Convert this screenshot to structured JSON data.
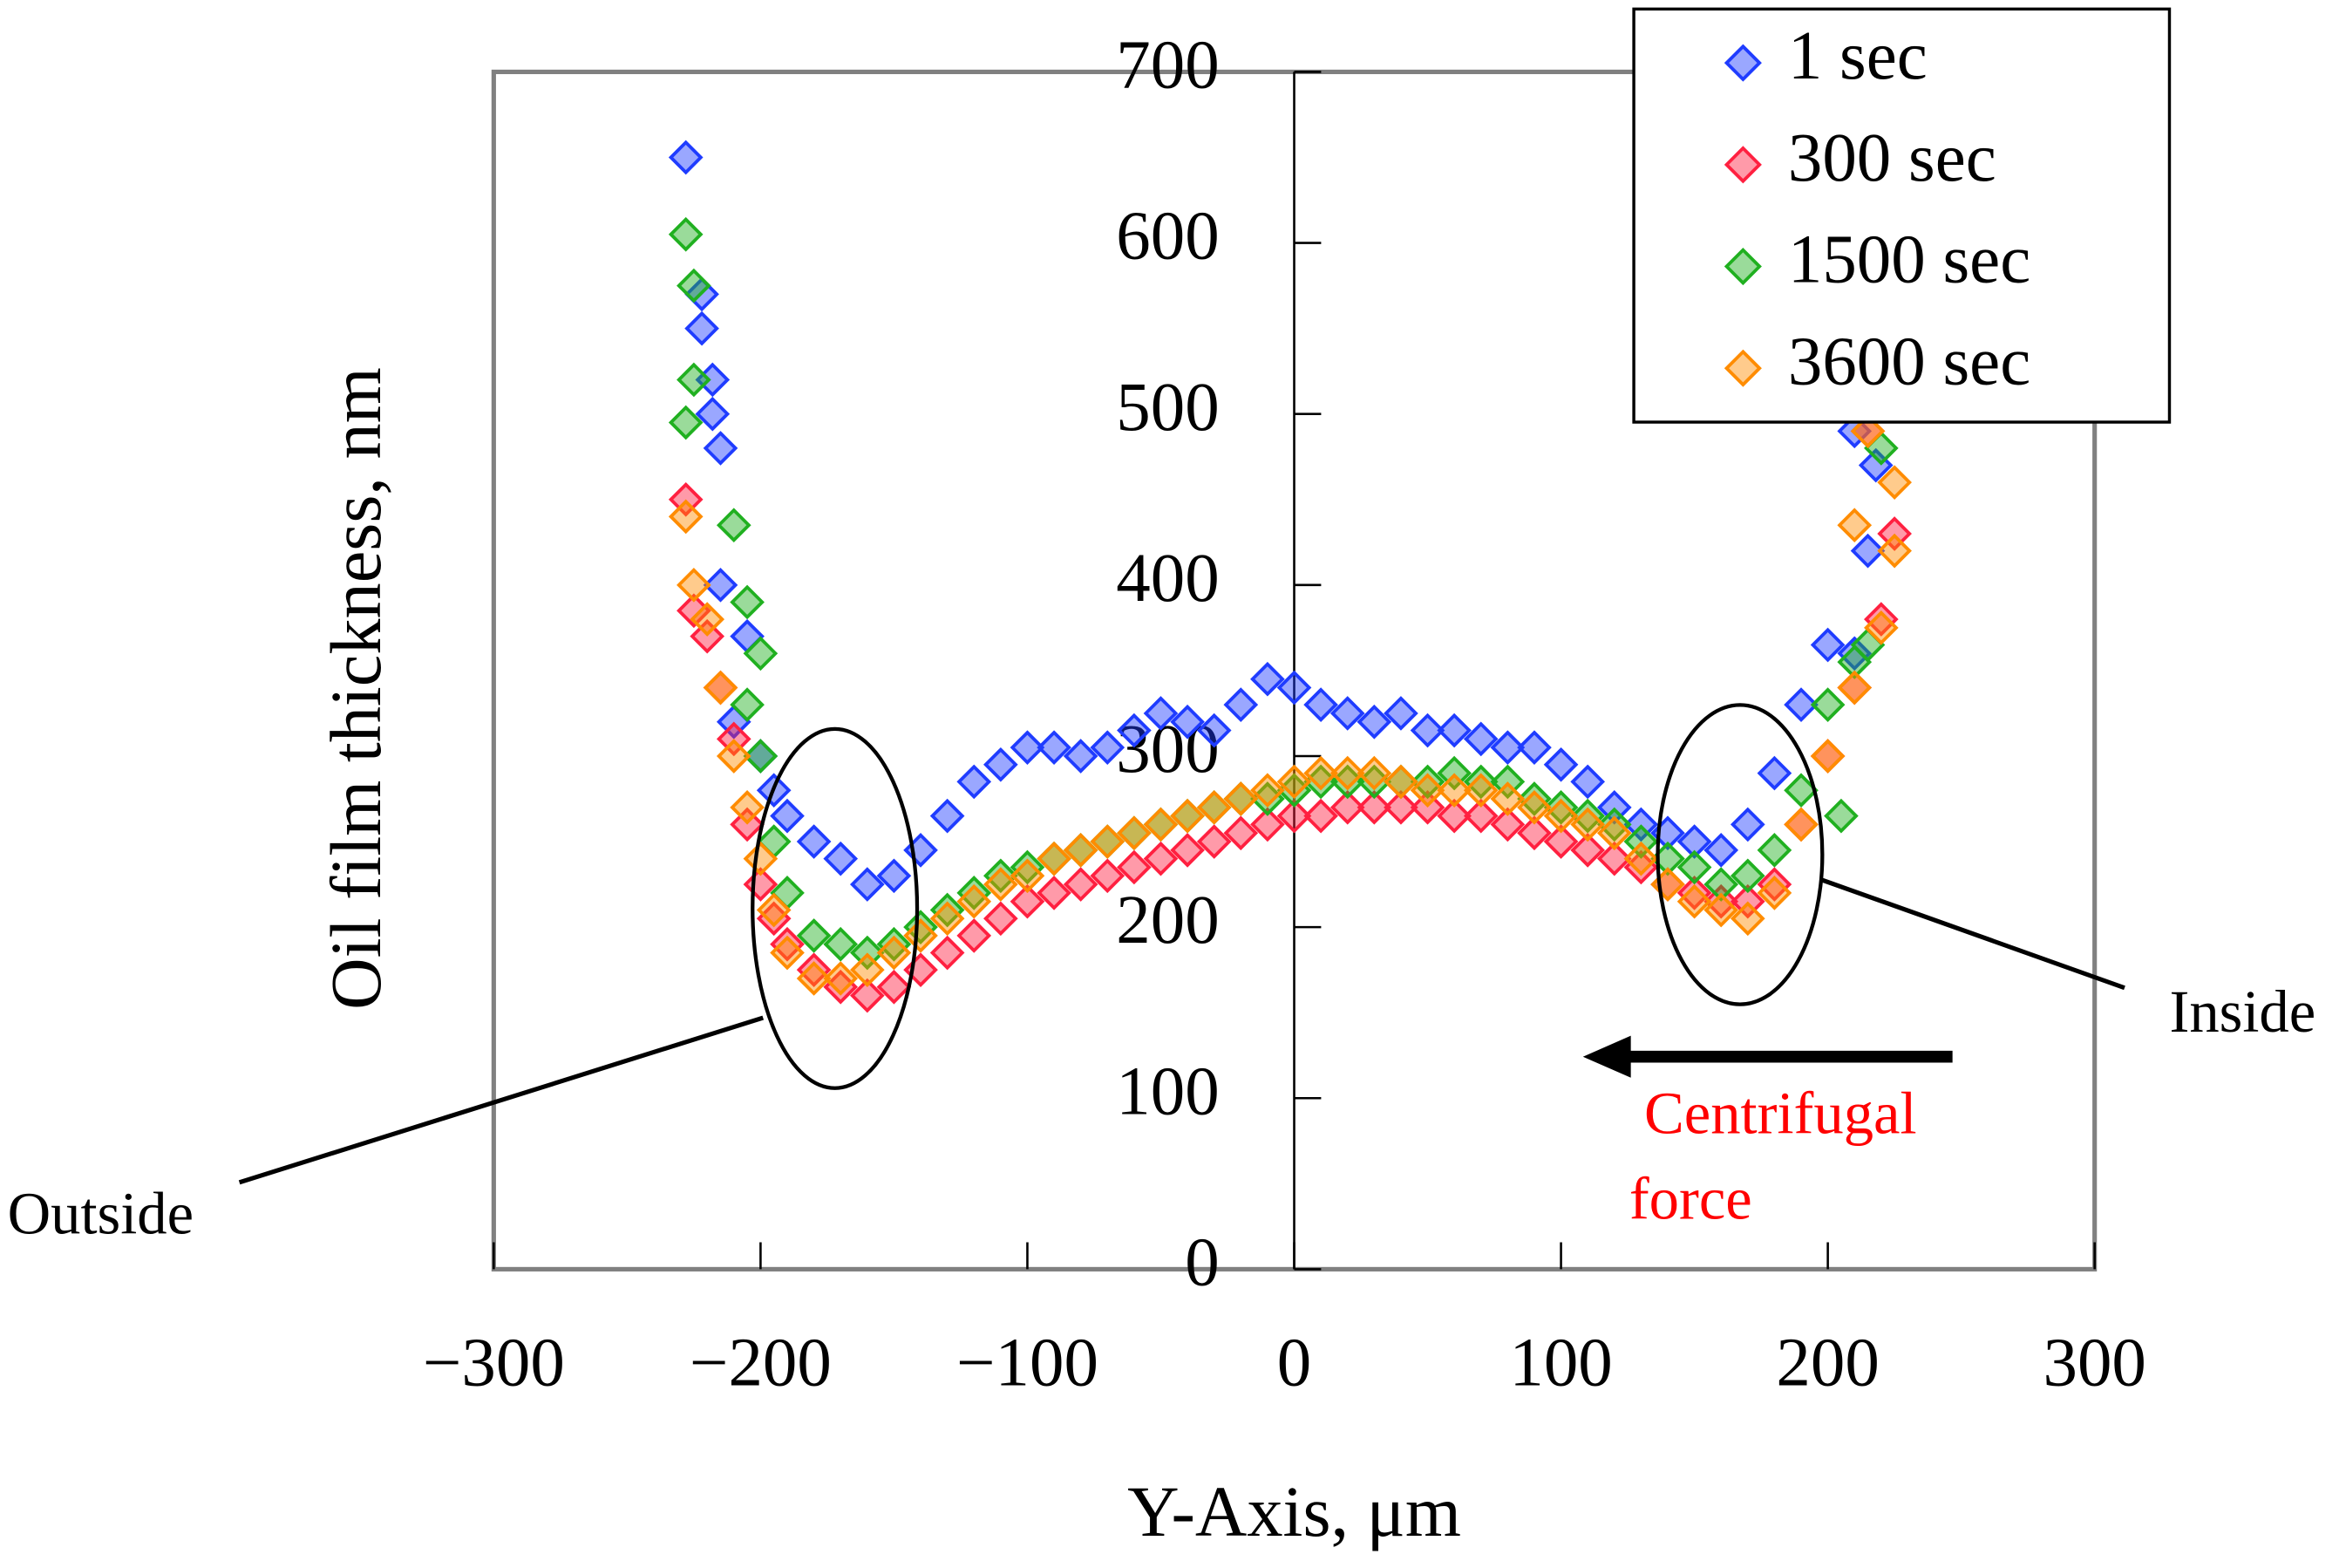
{
  "chart_data": {
    "type": "scatter",
    "xlabel": "Y-Axis, μm",
    "ylabel": "Oil film thickness, nm",
    "xlim": [
      -300,
      300
    ],
    "ylim": [
      0,
      700
    ],
    "xticks": [
      {
        "value": -300,
        "label": "−300"
      },
      {
        "value": -200,
        "label": "−200"
      },
      {
        "value": -100,
        "label": "−100"
      },
      0,
      100,
      200,
      300
    ],
    "yticks": [
      0,
      100,
      200,
      300,
      400,
      500,
      600,
      700
    ],
    "legend": "upper right",
    "annotations": [
      "Outside",
      "Inside",
      "Centrifugal",
      "force"
    ],
    "series": [
      {
        "name": "1 sec",
        "color": "#1f3cff",
        "x": [
          -228,
          -222,
          -222,
          -218,
          -218,
          -215,
          -215,
          -205,
          -210,
          -200,
          -195,
          -190,
          -180,
          -170,
          -160,
          -150,
          -140,
          -130,
          -120,
          -110,
          -100,
          -90,
          -80,
          -70,
          -60,
          -50,
          -40,
          -30,
          -20,
          -10,
          0,
          10,
          20,
          30,
          40,
          50,
          60,
          70,
          80,
          90,
          100,
          110,
          120,
          130,
          140,
          150,
          160,
          170,
          180,
          190,
          200,
          210,
          215,
          218,
          210
        ],
        "y": [
          650,
          570,
          550,
          520,
          500,
          480,
          400,
          370,
          320,
          300,
          280,
          265,
          250,
          240,
          225,
          230,
          245,
          265,
          285,
          295,
          305,
          305,
          300,
          305,
          315,
          325,
          320,
          315,
          330,
          345,
          340,
          330,
          325,
          320,
          325,
          315,
          315,
          310,
          305,
          305,
          295,
          285,
          270,
          260,
          255,
          250,
          245,
          260,
          290,
          330,
          365,
          360,
          420,
          470,
          490
        ]
      },
      {
        "name": "300 sec",
        "color": "#ff2040",
        "x": [
          -228,
          -225,
          -220,
          -215,
          -210,
          -205,
          -200,
          -195,
          -190,
          -180,
          -170,
          -160,
          -150,
          -140,
          -130,
          -120,
          -110,
          -100,
          -90,
          -80,
          -70,
          -60,
          -50,
          -40,
          -30,
          -20,
          -10,
          0,
          10,
          20,
          30,
          40,
          50,
          60,
          70,
          80,
          90,
          100,
          110,
          120,
          130,
          140,
          150,
          160,
          170,
          180,
          190,
          200,
          210,
          220,
          225,
          215
        ],
        "y": [
          450,
          385,
          370,
          340,
          310,
          260,
          225,
          205,
          190,
          175,
          165,
          160,
          165,
          175,
          185,
          195,
          205,
          215,
          220,
          225,
          230,
          235,
          240,
          245,
          250,
          255,
          260,
          265,
          265,
          270,
          270,
          270,
          270,
          265,
          265,
          260,
          255,
          250,
          245,
          240,
          235,
          225,
          220,
          215,
          215,
          225,
          260,
          300,
          340,
          380,
          430,
          490
        ]
      },
      {
        "name": "1500 sec",
        "color": "#20b020",
        "x": [
          -228,
          -225,
          -225,
          -228,
          -210,
          -205,
          -200,
          -205,
          -200,
          -195,
          -190,
          -180,
          -170,
          -160,
          -150,
          -140,
          -130,
          -120,
          -110,
          -100,
          -90,
          -80,
          -70,
          -60,
          -50,
          -40,
          -30,
          -20,
          -10,
          0,
          10,
          20,
          30,
          40,
          50,
          60,
          70,
          80,
          90,
          100,
          110,
          120,
          130,
          140,
          150,
          160,
          170,
          180,
          190,
          200,
          210,
          215,
          205,
          220
        ],
        "y": [
          605,
          575,
          520,
          495,
          435,
          390,
          360,
          330,
          300,
          250,
          220,
          195,
          190,
          185,
          190,
          200,
          210,
          220,
          230,
          235,
          240,
          245,
          250,
          255,
          260,
          265,
          270,
          275,
          275,
          280,
          285,
          285,
          285,
          285,
          285,
          290,
          285,
          285,
          275,
          270,
          265,
          260,
          250,
          240,
          235,
          225,
          230,
          245,
          280,
          330,
          355,
          365,
          265,
          480
        ]
      },
      {
        "name": "3600 sec",
        "color": "#ff8c00",
        "x": [
          -228,
          -225,
          -220,
          -215,
          -210,
          -205,
          -200,
          -195,
          -190,
          -180,
          -170,
          -160,
          -150,
          -140,
          -130,
          -120,
          -110,
          -100,
          -90,
          -80,
          -70,
          -60,
          -50,
          -40,
          -30,
          -20,
          -10,
          0,
          10,
          20,
          30,
          40,
          50,
          60,
          70,
          80,
          90,
          100,
          110,
          120,
          130,
          140,
          150,
          160,
          170,
          180,
          190,
          200,
          210,
          220,
          225,
          210,
          225,
          215
        ],
        "y": [
          440,
          400,
          380,
          340,
          300,
          270,
          240,
          210,
          185,
          170,
          170,
          175,
          185,
          195,
          205,
          215,
          225,
          230,
          240,
          245,
          250,
          255,
          260,
          265,
          270,
          275,
          280,
          285,
          290,
          290,
          290,
          285,
          280,
          280,
          280,
          275,
          270,
          265,
          260,
          255,
          240,
          225,
          215,
          210,
          205,
          220,
          260,
          300,
          340,
          375,
          420,
          435,
          460,
          490
        ]
      }
    ]
  }
}
